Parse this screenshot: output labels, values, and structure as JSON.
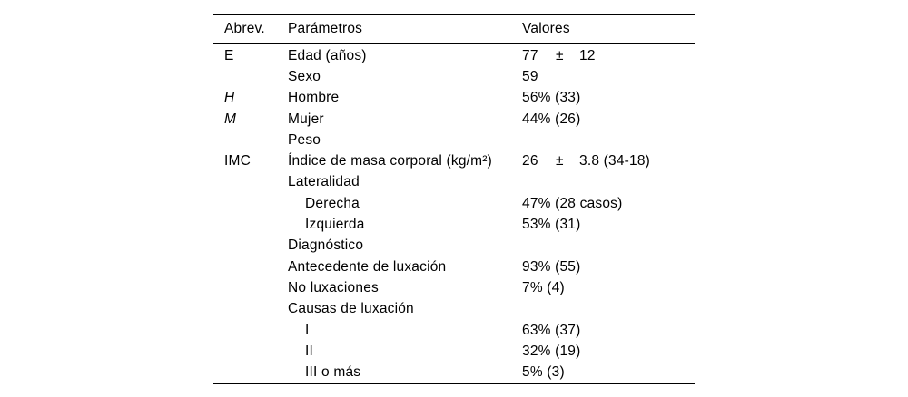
{
  "colors": {
    "background": "#ffffff",
    "text": "#000000",
    "rule": "#000000"
  },
  "table": {
    "header": {
      "abrev": "Abrev.",
      "param": "Parámetros",
      "val": "Valores"
    },
    "rows": [
      {
        "abrev": "E",
        "param": "Edad (años)",
        "v1": "77",
        "pm": "±",
        "v2": "12"
      },
      {
        "abrev": "",
        "param": "Sexo",
        "val": "59"
      },
      {
        "abrev": "H",
        "param": "Hombre",
        "val": "56% (33)"
      },
      {
        "abrev": "M",
        "param": "Mujer",
        "val": "44% (26)"
      },
      {
        "abrev": "",
        "param": "Peso",
        "val": ""
      },
      {
        "abrev": "IMC",
        "param": "Índice de masa corporal (kg/m²)",
        "v1": "26",
        "pm": "±",
        "v2": "3.8 (34-18)"
      },
      {
        "abrev": "",
        "param": "Lateralidad",
        "val": ""
      },
      {
        "abrev": "",
        "param": "Derecha",
        "val": "47% (28 casos)"
      },
      {
        "abrev": "",
        "param": "Izquierda",
        "val": "53% (31)"
      },
      {
        "abrev": "",
        "param": "Diagnóstico",
        "val": ""
      },
      {
        "abrev": "",
        "param": "Antecedente de luxación",
        "val": "93% (55)"
      },
      {
        "abrev": "",
        "param": "No luxaciones",
        "val": "7% (4)"
      },
      {
        "abrev": "",
        "param": "Causas de luxación",
        "val": ""
      },
      {
        "abrev": "",
        "param": "I",
        "val": "63% (37)"
      },
      {
        "abrev": "",
        "param": "II",
        "val": "32% (19)"
      },
      {
        "abrev": "",
        "param": "III o más",
        "val": "5% (3)"
      }
    ]
  }
}
